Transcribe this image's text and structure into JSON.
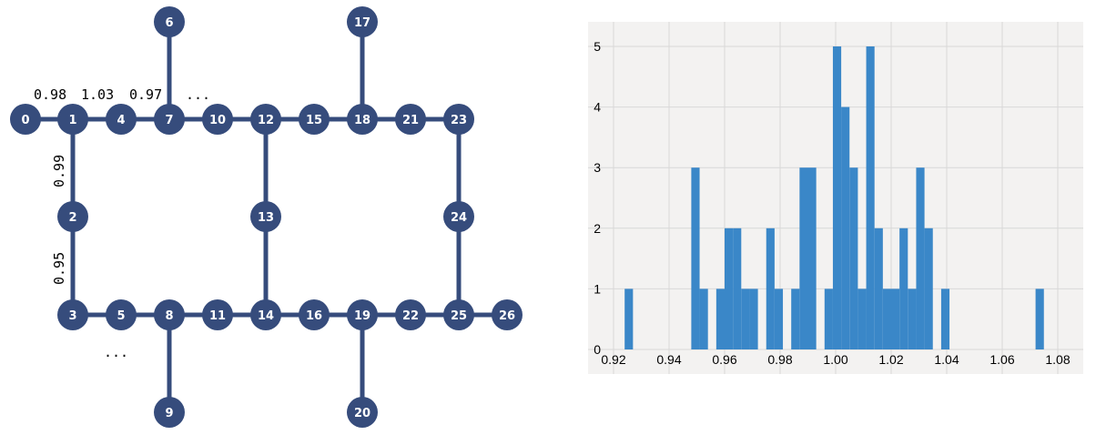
{
  "diagram": {
    "nodes": [
      {
        "id": "0",
        "label": "0"
      },
      {
        "id": "1",
        "label": "1"
      },
      {
        "id": "2",
        "label": "2"
      },
      {
        "id": "3",
        "label": "3"
      },
      {
        "id": "4",
        "label": "4"
      },
      {
        "id": "5",
        "label": "5"
      },
      {
        "id": "6",
        "label": "6"
      },
      {
        "id": "7",
        "label": "7"
      },
      {
        "id": "8",
        "label": "8"
      },
      {
        "id": "9",
        "label": "9"
      },
      {
        "id": "10",
        "label": "10"
      },
      {
        "id": "11",
        "label": "11"
      },
      {
        "id": "12",
        "label": "12"
      },
      {
        "id": "13",
        "label": "13"
      },
      {
        "id": "14",
        "label": "14"
      },
      {
        "id": "15",
        "label": "15"
      },
      {
        "id": "16",
        "label": "16"
      },
      {
        "id": "17",
        "label": "17"
      },
      {
        "id": "18",
        "label": "18"
      },
      {
        "id": "19",
        "label": "19"
      },
      {
        "id": "20",
        "label": "20"
      },
      {
        "id": "21",
        "label": "21"
      },
      {
        "id": "22",
        "label": "22"
      },
      {
        "id": "23",
        "label": "23"
      },
      {
        "id": "24",
        "label": "24"
      },
      {
        "id": "25",
        "label": "25"
      },
      {
        "id": "26",
        "label": "26"
      }
    ],
    "edges": [
      [
        "0",
        "1"
      ],
      [
        "1",
        "4"
      ],
      [
        "4",
        "7"
      ],
      [
        "7",
        "10"
      ],
      [
        "10",
        "12"
      ],
      [
        "12",
        "15"
      ],
      [
        "15",
        "18"
      ],
      [
        "18",
        "21"
      ],
      [
        "21",
        "23"
      ],
      [
        "3",
        "5"
      ],
      [
        "5",
        "8"
      ],
      [
        "8",
        "11"
      ],
      [
        "11",
        "14"
      ],
      [
        "14",
        "16"
      ],
      [
        "16",
        "19"
      ],
      [
        "19",
        "22"
      ],
      [
        "22",
        "25"
      ],
      [
        "25",
        "26"
      ],
      [
        "1",
        "2"
      ],
      [
        "2",
        "3"
      ],
      [
        "12",
        "13"
      ],
      [
        "13",
        "14"
      ],
      [
        "23",
        "24"
      ],
      [
        "24",
        "25"
      ],
      [
        "6",
        "7"
      ],
      [
        "17",
        "18"
      ],
      [
        "8",
        "9"
      ],
      [
        "19",
        "20"
      ]
    ],
    "edge_labels": {
      "top_0_1": "0.98",
      "top_1_4": "1.03",
      "top_4_7": "0.97",
      "top_ellipsis": "...",
      "left_1_2": "0.99",
      "left_2_3": "0.95",
      "bottom_ellipsis": "..."
    },
    "colors": {
      "node": "#364c7c",
      "edge": "#364c7c",
      "node_text": "#ffffff"
    }
  },
  "chart_data": {
    "type": "bar",
    "title": "",
    "xlabel": "",
    "ylabel": "",
    "xlim": [
      0.92,
      1.08
    ],
    "ylim": [
      0,
      5.25
    ],
    "x_ticks": [
      "0.92",
      "0.94",
      "0.96",
      "0.98",
      "1.00",
      "1.02",
      "1.04",
      "1.06",
      "1.08"
    ],
    "y_ticks": [
      "0",
      "1",
      "2",
      "3",
      "4",
      "5"
    ],
    "grid": true,
    "bar_color": "#3a87c8",
    "background": "#f3f2f1",
    "bins": [
      {
        "x0": 0.924,
        "x1": 0.927,
        "count": 1
      },
      {
        "x0": 0.948,
        "x1": 0.951,
        "count": 3
      },
      {
        "x0": 0.951,
        "x1": 0.954,
        "count": 1
      },
      {
        "x0": 0.957,
        "x1": 0.96,
        "count": 1
      },
      {
        "x0": 0.96,
        "x1": 0.963,
        "count": 2
      },
      {
        "x0": 0.963,
        "x1": 0.966,
        "count": 2
      },
      {
        "x0": 0.966,
        "x1": 0.969,
        "count": 1
      },
      {
        "x0": 0.969,
        "x1": 0.972,
        "count": 1
      },
      {
        "x0": 0.975,
        "x1": 0.978,
        "count": 2
      },
      {
        "x0": 0.978,
        "x1": 0.981,
        "count": 1
      },
      {
        "x0": 0.984,
        "x1": 0.987,
        "count": 1
      },
      {
        "x0": 0.987,
        "x1": 0.99,
        "count": 3
      },
      {
        "x0": 0.99,
        "x1": 0.993,
        "count": 3
      },
      {
        "x0": 0.996,
        "x1": 0.999,
        "count": 1
      },
      {
        "x0": 0.999,
        "x1": 1.002,
        "count": 5
      },
      {
        "x0": 1.002,
        "x1": 1.005,
        "count": 4
      },
      {
        "x0": 1.005,
        "x1": 1.008,
        "count": 3
      },
      {
        "x0": 1.008,
        "x1": 1.011,
        "count": 1
      },
      {
        "x0": 1.011,
        "x1": 1.014,
        "count": 5
      },
      {
        "x0": 1.014,
        "x1": 1.017,
        "count": 2
      },
      {
        "x0": 1.017,
        "x1": 1.02,
        "count": 1
      },
      {
        "x0": 1.02,
        "x1": 1.023,
        "count": 1
      },
      {
        "x0": 1.023,
        "x1": 1.026,
        "count": 2
      },
      {
        "x0": 1.026,
        "x1": 1.029,
        "count": 1
      },
      {
        "x0": 1.029,
        "x1": 1.032,
        "count": 3
      },
      {
        "x0": 1.032,
        "x1": 1.035,
        "count": 2
      },
      {
        "x0": 1.038,
        "x1": 1.041,
        "count": 1
      },
      {
        "x0": 1.072,
        "x1": 1.075,
        "count": 1
      }
    ]
  }
}
